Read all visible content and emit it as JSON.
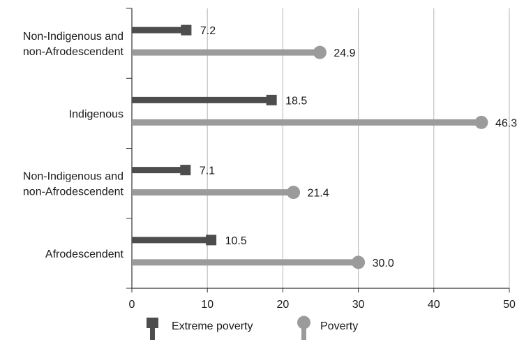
{
  "chart_data": {
    "type": "bar",
    "orientation": "horizontal",
    "style": "lollipop",
    "categories": [
      "Non-Indigenous and\nnon-Afrodescendent",
      "Indigenous",
      "Non-Indigenous and\nnon-Afrodescendent",
      "Afrodescendent"
    ],
    "series": [
      {
        "name": "Extreme poverty",
        "values": [
          7.2,
          18.5,
          7.1,
          10.5
        ],
        "labels": [
          "7.2",
          "18.5",
          "7.1",
          "10.5"
        ],
        "color": "#4d4d4d",
        "marker": "square"
      },
      {
        "name": "Poverty",
        "values": [
          24.9,
          46.3,
          21.4,
          30.0
        ],
        "labels": [
          "24.9",
          "46.3",
          "21.4",
          "30.0"
        ],
        "color": "#9b9b9b",
        "marker": "circle"
      }
    ],
    "xlim": [
      0,
      50
    ],
    "xticks": [
      "0",
      "10",
      "20",
      "30",
      "40",
      "50"
    ],
    "xlabel": "",
    "ylabel": "",
    "title": "",
    "grid": "vertical",
    "legend_position": "bottom-center"
  }
}
